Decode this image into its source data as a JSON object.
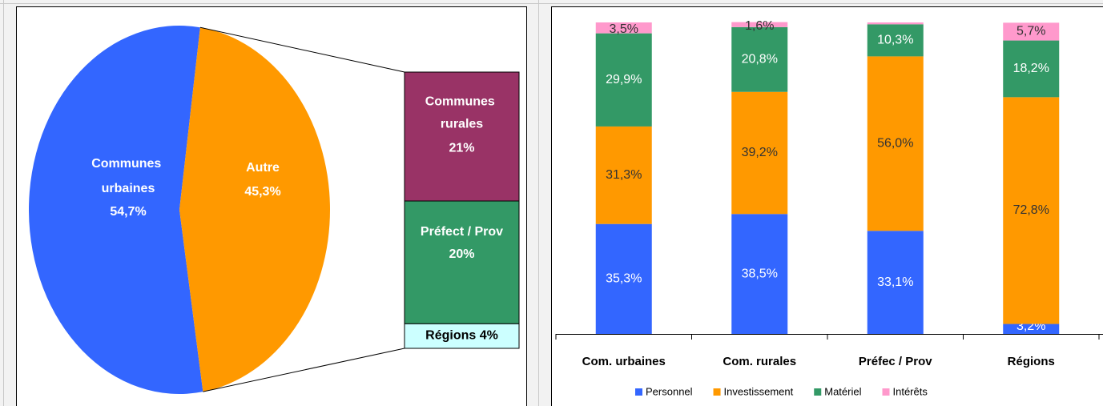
{
  "chart_data": [
    {
      "type": "pie",
      "categories": [
        "Communes urbaines",
        "Autre"
      ],
      "values": [
        54.7,
        45.3
      ],
      "value_labels": [
        "54,7%",
        "45,3%"
      ],
      "colors": [
        "#3366ff",
        "#ff9900"
      ],
      "breakdown": {
        "categories": [
          "Communes rurales",
          "Préfect / Prov",
          "Régions"
        ],
        "values": [
          21,
          20,
          4
        ],
        "value_labels": [
          "21%",
          "20%",
          "4%"
        ],
        "colors": [
          "#993366",
          "#339966",
          "#ccffff"
        ]
      }
    },
    {
      "type": "stacked_bar",
      "categories": [
        "Com. urbaines",
        "Com. rurales",
        "Préfec / Prov",
        "Régions"
      ],
      "ylim": [
        0,
        100
      ],
      "series": [
        {
          "name": "Personnel",
          "color": "#3366ff",
          "values": [
            35.3,
            38.5,
            33.1,
            3.2
          ],
          "value_labels": [
            "35,3%",
            "38,5%",
            "33,1%",
            "3,2%"
          ]
        },
        {
          "name": "Investissement",
          "color": "#ff9900",
          "values": [
            31.3,
            39.2,
            56.0,
            72.8
          ],
          "value_labels": [
            "31,3%",
            "39,2%",
            "56,0%",
            "72,8%"
          ]
        },
        {
          "name": "Matériel",
          "color": "#339966",
          "values": [
            29.9,
            20.8,
            10.3,
            18.2
          ],
          "value_labels": [
            "29,9%",
            "20,8%",
            "10,3%",
            "18,2%"
          ]
        },
        {
          "name": "Intérêts",
          "color": "#ff99cc",
          "values": [
            3.5,
            1.6,
            0.6,
            5.7
          ],
          "value_labels": [
            "3,5%",
            "1,6%",
            null,
            "5,7%"
          ]
        }
      ]
    }
  ]
}
